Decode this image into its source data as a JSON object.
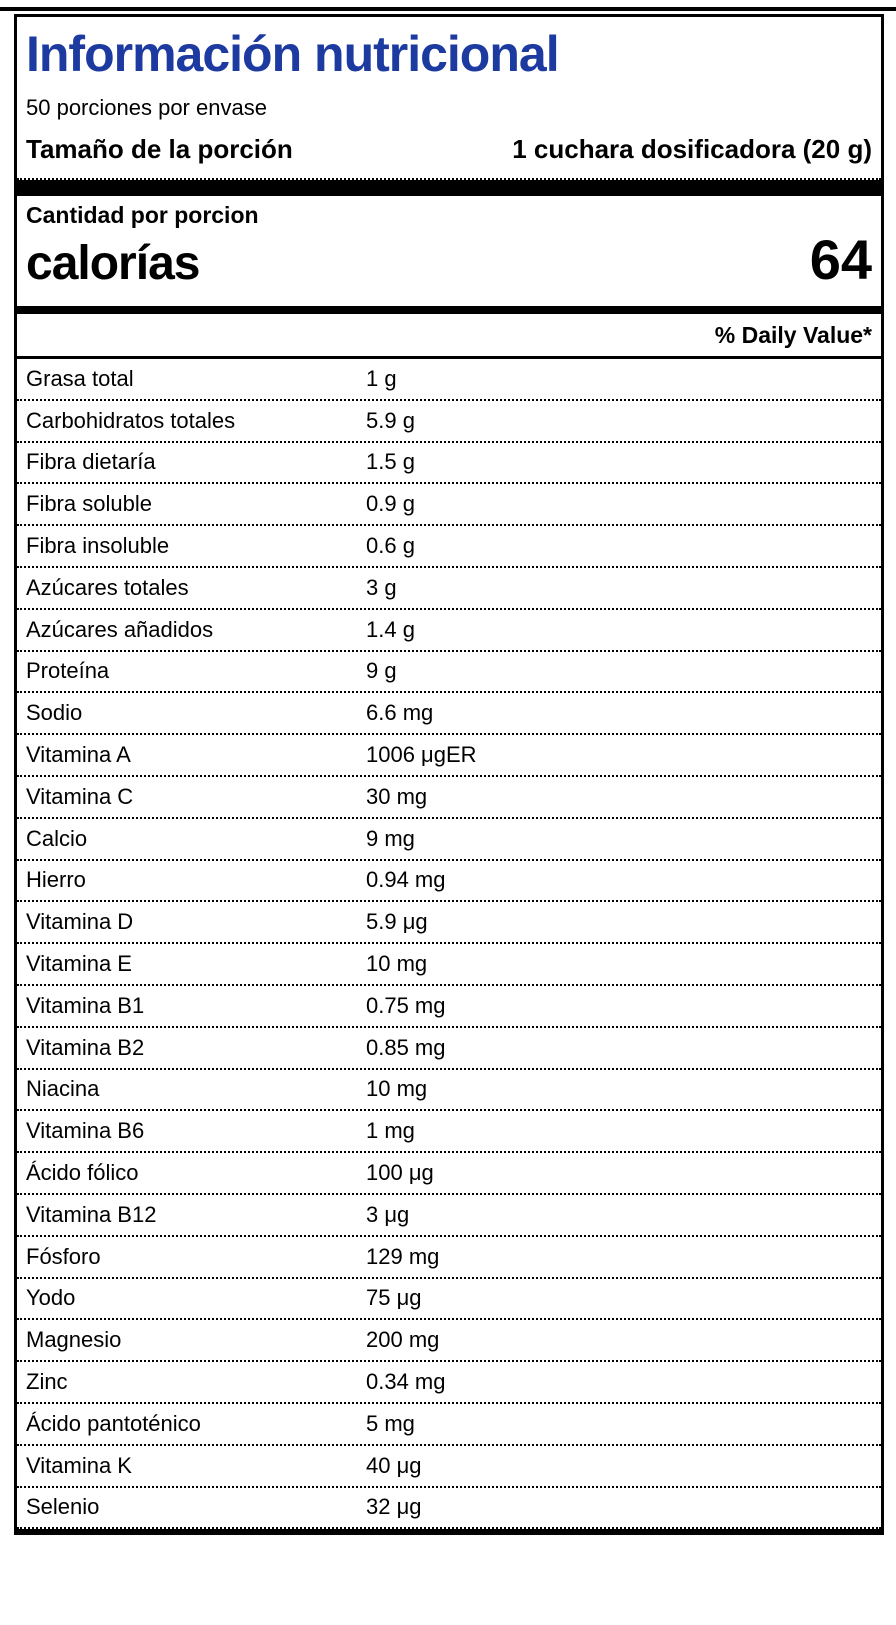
{
  "label": {
    "title": "Información nutricional",
    "servings_per_container": "50 porciones por envase",
    "serving_size_label": "Tamaño de la porción",
    "serving_size_value": "1 cuchara dosificadora (20 g)",
    "amount_per_serving": "Cantidad por porcion",
    "calories_label": "calorías",
    "calories_value": "64",
    "daily_value_header": "% Daily Value*",
    "title_color": "#1c3aa0",
    "text_color": "#000000"
  },
  "nutrients": [
    {
      "name": "Grasa total",
      "amount": "1 g"
    },
    {
      "name": "Carbohidratos totales",
      "amount": "5.9 g"
    },
    {
      "name": "Fibra dietaría",
      "amount": "1.5 g"
    },
    {
      "name": "Fibra soluble",
      "amount": "0.9 g"
    },
    {
      "name": "Fibra insoluble",
      "amount": "0.6 g"
    },
    {
      "name": "Azúcares totales",
      "amount": "3 g"
    },
    {
      "name": "Azúcares añadidos",
      "amount": "1.4 g"
    },
    {
      "name": "Proteína",
      "amount": "9 g"
    },
    {
      "name": "Sodio",
      "amount": "6.6 mg"
    },
    {
      "name": "Vitamina A",
      "amount": "1006 μgER"
    },
    {
      "name": "Vitamina C",
      "amount": "30 mg"
    },
    {
      "name": "Calcio",
      "amount": "9 mg"
    },
    {
      "name": "Hierro",
      "amount": "0.94 mg"
    },
    {
      "name": "Vitamina D",
      "amount": "5.9 μg"
    },
    {
      "name": "Vitamina E",
      "amount": "10 mg"
    },
    {
      "name": "Vitamina B1",
      "amount": "0.75 mg"
    },
    {
      "name": "Vitamina B2",
      "amount": "0.85 mg"
    },
    {
      "name": "Niacina",
      "amount": "10 mg"
    },
    {
      "name": "Vitamina B6",
      "amount": "1 mg"
    },
    {
      "name": "Ácido fólico",
      "amount": "100 μg"
    },
    {
      "name": "Vitamina B12",
      "amount": "3 μg"
    },
    {
      "name": "Fósforo",
      "amount": "129 mg"
    },
    {
      "name": "Yodo",
      "amount": "75 μg"
    },
    {
      "name": "Magnesio",
      "amount": "200 mg"
    },
    {
      "name": "Zinc",
      "amount": "0.34 mg"
    },
    {
      "name": "Ácido pantoténico",
      "amount": "5 mg"
    },
    {
      "name": "Vitamina K",
      "amount": "40 μg"
    },
    {
      "name": "Selenio",
      "amount": "32 μg"
    }
  ]
}
